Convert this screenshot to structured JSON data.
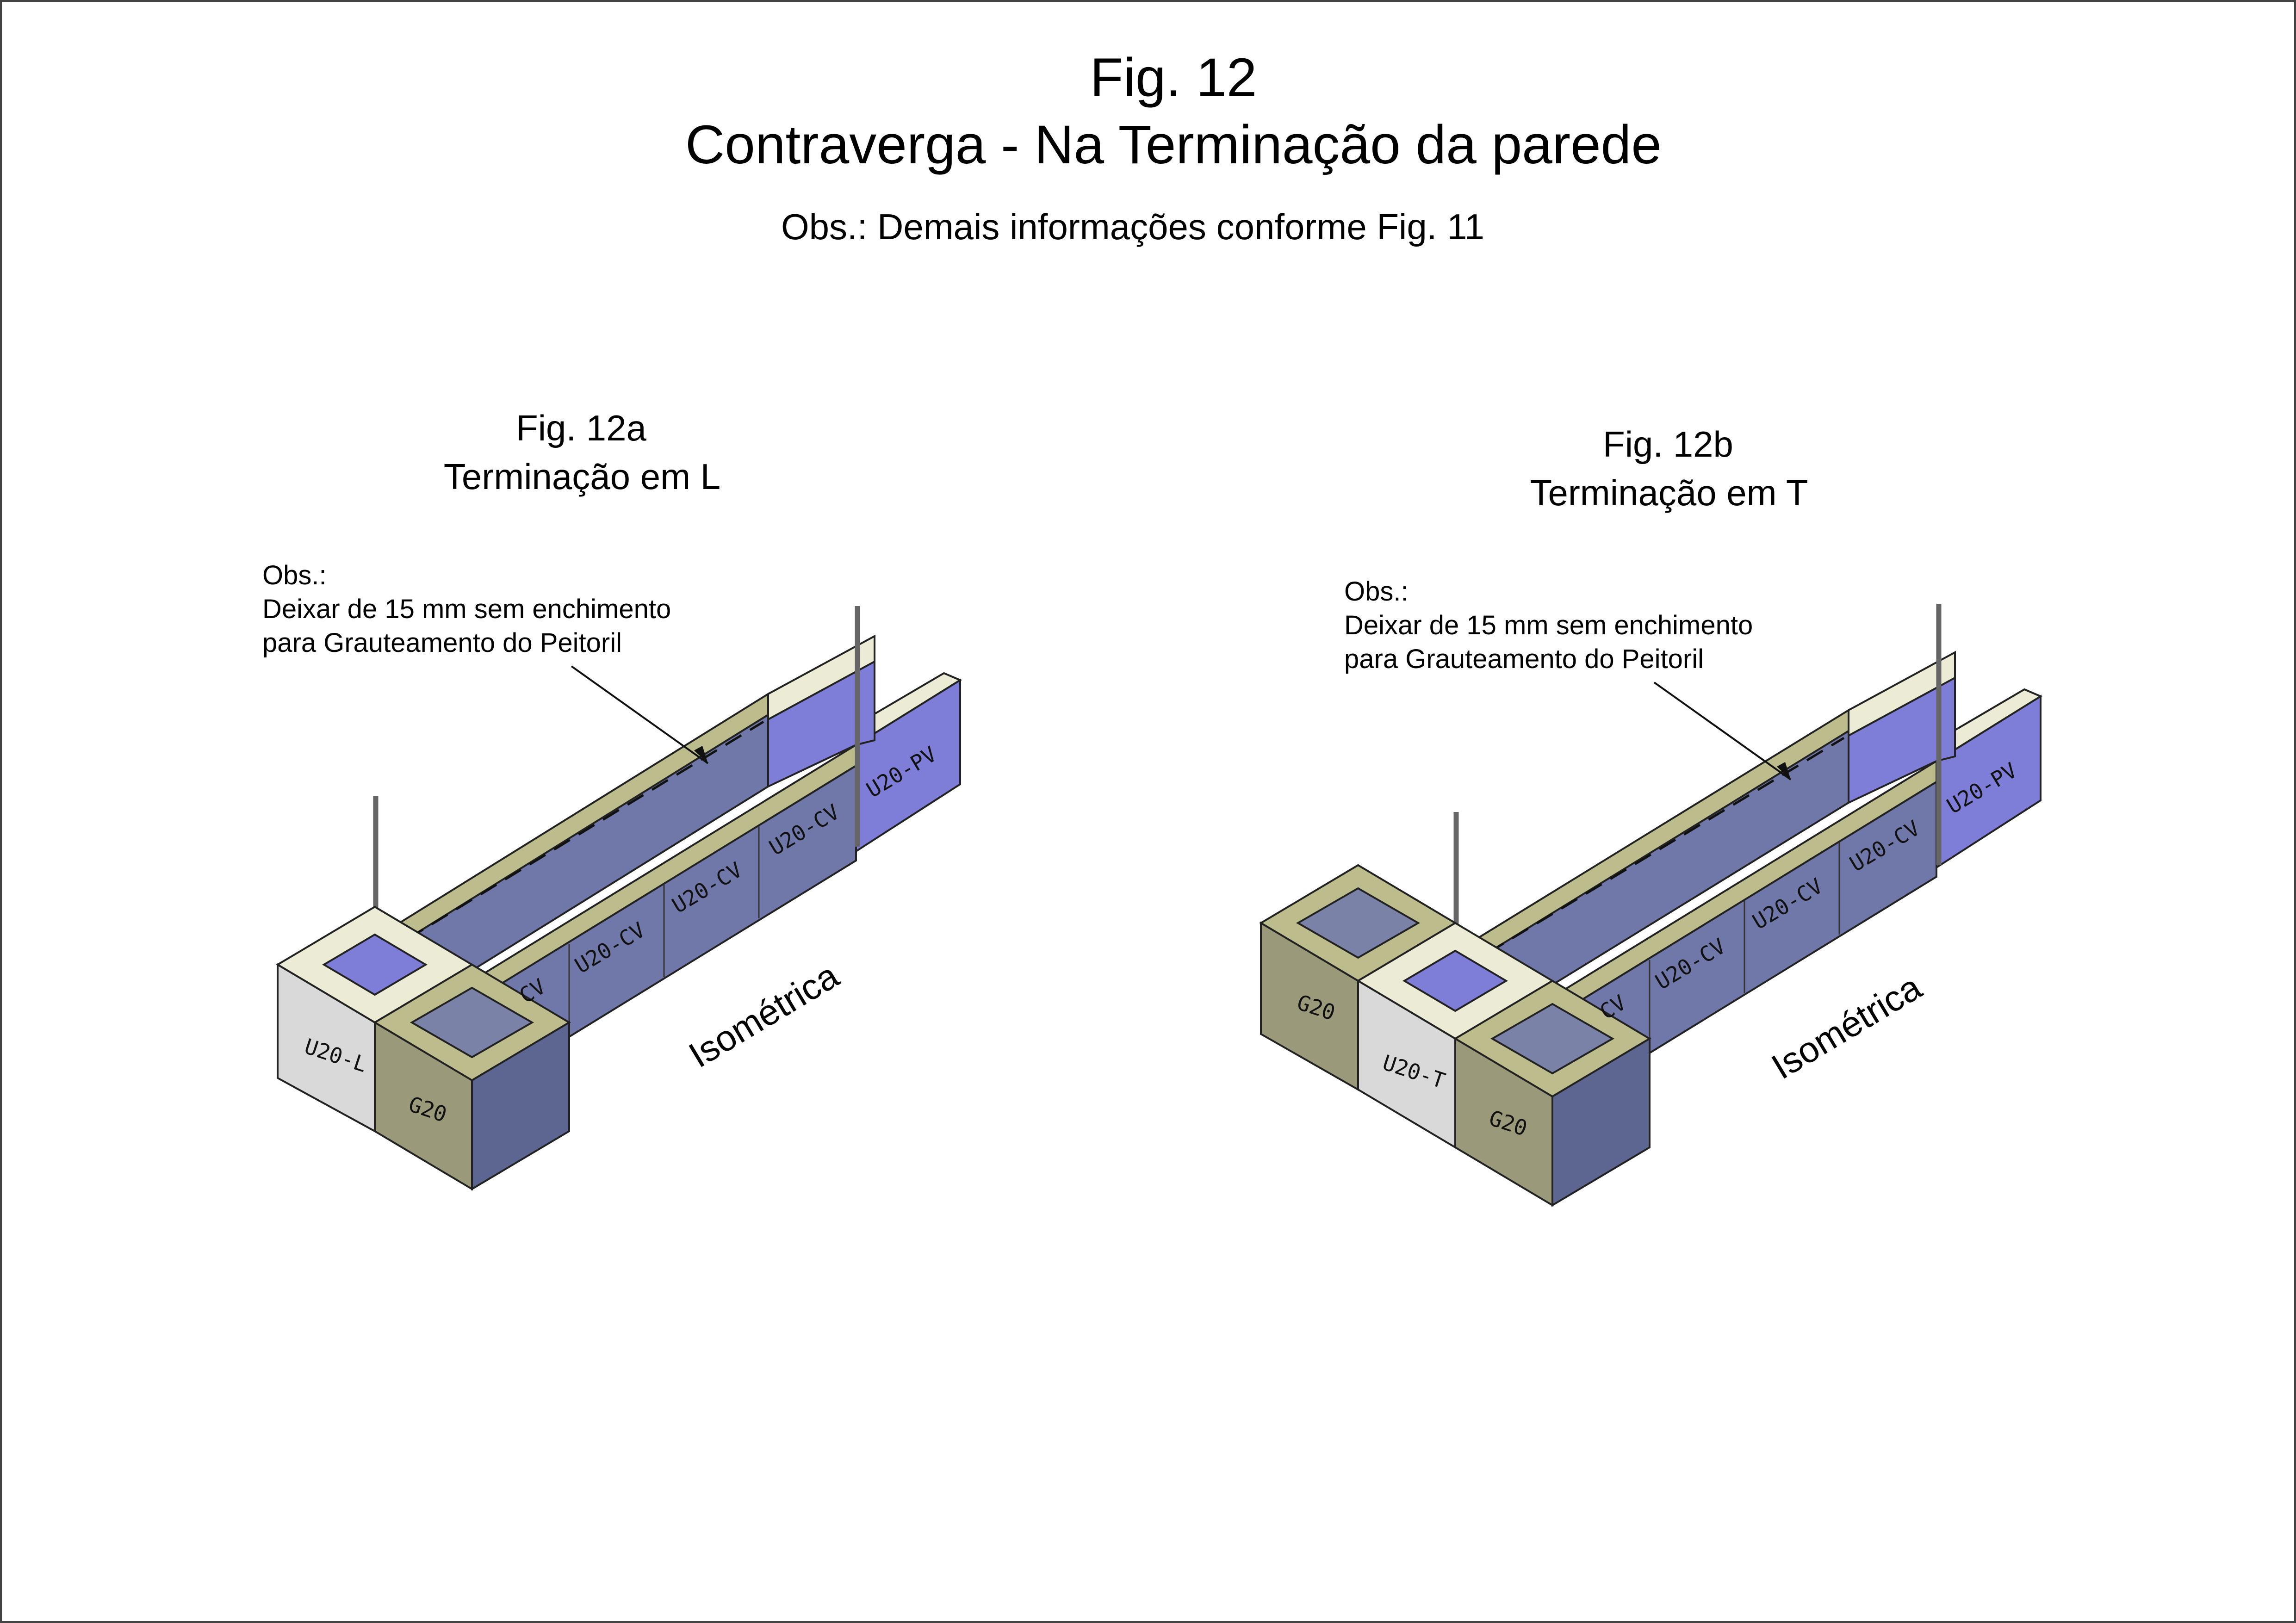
{
  "header": {
    "fig_number": "Fig. 12",
    "title": "Contraverga - Na Terminação da parede",
    "note": "Obs.: Demais informações conforme Fig. 11"
  },
  "figures": [
    {
      "fig_number": "Fig. 12a",
      "subtitle": "Terminação em L",
      "obs_title": "Obs.:",
      "obs_line1": "Deixar de 15 mm sem enchimento",
      "obs_line2": "para Grauteamento do Peitoril",
      "view_label": "Isométrica",
      "blocks": {
        "corner": "U20-L",
        "g20": "G20",
        "cv1": "CV",
        "cv2": "U20-CV",
        "cv3": "U20-CV",
        "cv4": "U20-CV",
        "pv": "U20-PV"
      }
    },
    {
      "fig_number": "Fig. 12b",
      "subtitle": "Terminação em T",
      "obs_title": "Obs.:",
      "obs_line1": "Deixar de 15 mm sem enchimento",
      "obs_line2": "para Grauteamento do Peitoril",
      "view_label": "Isométrica",
      "blocks": {
        "g20_left": "G20",
        "corner": "U20-T",
        "g20": "G20",
        "cv1": "CV",
        "cv2": "U20-CV",
        "cv3": "U20-CV",
        "cv4": "U20-CV",
        "pv": "U20-PV"
      }
    }
  ],
  "colors": {
    "yellow_top": "#bcbc8c",
    "blue_face": "#6f78a8",
    "purple_face": "#7e7ed8",
    "grey_block": "#d9d9d9",
    "olive_block": "#9a9a7a",
    "cream_top": "#ecebd6"
  }
}
